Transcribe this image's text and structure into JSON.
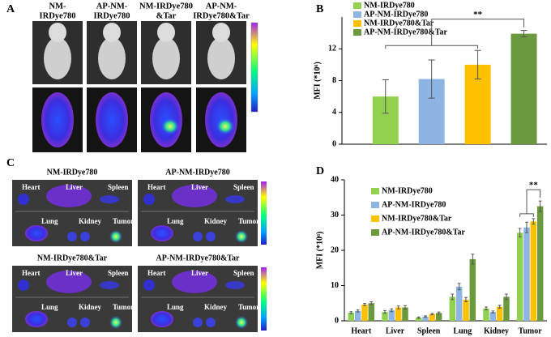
{
  "panels": {
    "A": "A",
    "B": "B",
    "C": "C",
    "D": "D"
  },
  "panel_a": {
    "columns": [
      [
        "NM-",
        "IRDye780"
      ],
      [
        "AP-NM-",
        "IRDye780"
      ],
      [
        "NM-IRDye780",
        "&Tar"
      ],
      [
        "AP-NM-",
        "IRDye780&Tar"
      ]
    ]
  },
  "panel_c": {
    "images": [
      "NM-IRDye780",
      "AP-NM-IRDye780",
      "NM-IRDye780&Tar",
      "AP-NM-IRDye780&Tar"
    ],
    "organs": [
      "Heart",
      "Liver",
      "Spleen",
      "Lung",
      "Kidney",
      "Tumor"
    ]
  },
  "chart_data": [
    {
      "type": "bar",
      "ylabel": "MFI (*10⁶)",
      "categories": [
        null
      ],
      "series": [
        {
          "name": "NM-IRDye780",
          "color": "#92d050",
          "values": [
            6.0
          ],
          "errors": [
            2.1
          ]
        },
        {
          "name": "AP-NM-IRDye780",
          "color": "#8db4e2",
          "values": [
            8.2
          ],
          "errors": [
            2.4
          ]
        },
        {
          "name": "NM-IRDye780&Tar",
          "color": "#ffc000",
          "values": [
            10.0
          ],
          "errors": [
            1.8
          ]
        },
        {
          "name": "AP-NM-IRDye780&Tar",
          "color": "#6b9a3e",
          "values": [
            13.9
          ],
          "errors": [
            0.4
          ]
        }
      ],
      "ylim": [
        0,
        16
      ],
      "yticks": [
        0,
        4,
        8,
        12
      ],
      "annotation": "**"
    },
    {
      "type": "bar",
      "ylabel": "MFI (*10⁶)",
      "categories": [
        "Heart",
        "Liver",
        "Spleen",
        "Lung",
        "Kidney",
        "Tumor"
      ],
      "series": [
        {
          "name": "NM-IRDye780",
          "color": "#92d050",
          "values": [
            2.3,
            2.5,
            0.9,
            6.8,
            3.5,
            25.0
          ],
          "errors": [
            0.3,
            0.4,
            0.2,
            0.8,
            0.4,
            1.2
          ]
        },
        {
          "name": "AP-NM-IRDye780",
          "color": "#8db4e2",
          "values": [
            2.8,
            3.0,
            1.2,
            9.7,
            2.5,
            26.5
          ],
          "errors": [
            0.3,
            0.4,
            0.2,
            0.9,
            0.3,
            1.5
          ]
        },
        {
          "name": "NM-IRDye780&Tar",
          "color": "#ffc000",
          "values": [
            4.6,
            3.8,
            1.9,
            6.0,
            4.0,
            28.2
          ],
          "errors": [
            0.3,
            0.4,
            0.2,
            0.6,
            0.4,
            0.8
          ]
        },
        {
          "name": "AP-NM-IRDye780&Tar",
          "color": "#6b9a3e",
          "values": [
            5.0,
            3.8,
            2.2,
            17.5,
            6.8,
            32.5
          ],
          "errors": [
            0.4,
            0.5,
            0.3,
            1.4,
            0.8,
            1.5
          ]
        }
      ],
      "ylim": [
        0,
        40
      ],
      "yticks": [
        0,
        10,
        20,
        30,
        40
      ],
      "annotation": "**"
    }
  ]
}
